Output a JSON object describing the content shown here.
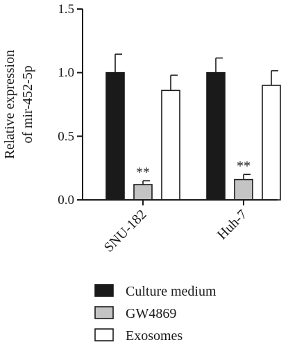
{
  "chart_data": {
    "type": "bar",
    "ylabel_lines": [
      "Relative expression",
      "of mir-452-5p"
    ],
    "ylim": [
      0,
      1.5
    ],
    "yticks": [
      "0.0",
      "0.5",
      "1.0",
      "1.5"
    ],
    "categories": [
      "SNU-182",
      "Huh-7"
    ],
    "series": [
      {
        "name": "Culture medium",
        "values": [
          1.0,
          1.0
        ],
        "errors": [
          0.145,
          0.115
        ],
        "color": "#1a1a1a"
      },
      {
        "name": "GW4869",
        "values": [
          0.12,
          0.16
        ],
        "errors": [
          0.03,
          0.04
        ],
        "color": "#c4c4c4"
      },
      {
        "name": "Exosomes",
        "values": [
          0.86,
          0.9
        ],
        "errors": [
          0.12,
          0.115
        ],
        "color": "#ffffff"
      }
    ],
    "annotations": [
      {
        "category": "SNU-182",
        "series": "GW4869",
        "text": "**"
      },
      {
        "category": "Huh-7",
        "series": "GW4869",
        "text": "**"
      }
    ],
    "legend_position": "bottom",
    "grid": false
  }
}
